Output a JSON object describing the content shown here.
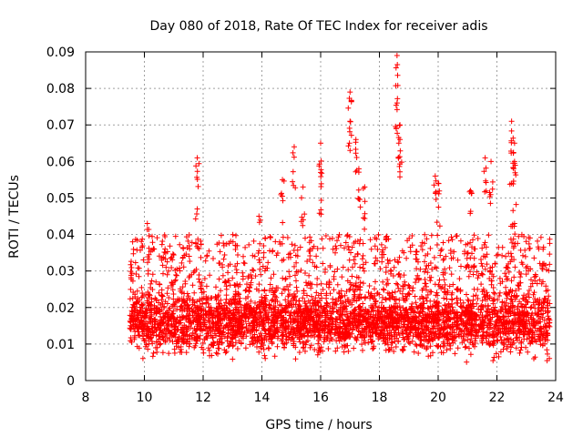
{
  "chart_data": {
    "type": "scatter",
    "title": "Day 080 of 2018, Rate Of TEC Index for receiver adis",
    "xlabel": "GPS time / hours",
    "ylabel": "ROTI / TECUs",
    "xlim": [
      8,
      24
    ],
    "ylim": [
      0,
      0.09
    ],
    "x_ticks": [
      8,
      10,
      12,
      14,
      16,
      18,
      20,
      22,
      24
    ],
    "x_tick_labels": [
      "8",
      "10",
      "12",
      "14",
      "16",
      "18",
      "20",
      "22",
      "24"
    ],
    "y_ticks": [
      0,
      0.01,
      0.02,
      0.03,
      0.04,
      0.05,
      0.06,
      0.07,
      0.08,
      0.09
    ],
    "y_tick_labels": [
      "0",
      "0.01",
      "0.02",
      "0.03",
      "0.04",
      "0.05",
      "0.06",
      "0.07",
      "0.08",
      "0.09"
    ],
    "grid": true,
    "marker": "+",
    "series_color": "#ff0000",
    "time_range": [
      9.5,
      23.8
    ],
    "bulk_band": [
      0.005,
      0.03
    ],
    "peaks": [
      {
        "x": 9.6,
        "y": 0.038
      },
      {
        "x": 10.1,
        "y": 0.043
      },
      {
        "x": 11.8,
        "y": 0.061
      },
      {
        "x": 11.8,
        "y": 0.047
      },
      {
        "x": 13.9,
        "y": 0.045
      },
      {
        "x": 14.7,
        "y": 0.055
      },
      {
        "x": 15.1,
        "y": 0.064
      },
      {
        "x": 15.4,
        "y": 0.053
      },
      {
        "x": 16.0,
        "y": 0.065
      },
      {
        "x": 16.0,
        "y": 0.057
      },
      {
        "x": 17.0,
        "y": 0.079
      },
      {
        "x": 17.0,
        "y": 0.071
      },
      {
        "x": 17.2,
        "y": 0.066
      },
      {
        "x": 17.3,
        "y": 0.058
      },
      {
        "x": 17.5,
        "y": 0.053
      },
      {
        "x": 18.6,
        "y": 0.089
      },
      {
        "x": 18.6,
        "y": 0.076
      },
      {
        "x": 18.7,
        "y": 0.07
      },
      {
        "x": 18.7,
        "y": 0.066
      },
      {
        "x": 19.9,
        "y": 0.056
      },
      {
        "x": 20.0,
        "y": 0.054
      },
      {
        "x": 21.1,
        "y": 0.052
      },
      {
        "x": 21.6,
        "y": 0.061
      },
      {
        "x": 21.8,
        "y": 0.06
      },
      {
        "x": 22.5,
        "y": 0.071
      },
      {
        "x": 22.6,
        "y": 0.065
      },
      {
        "x": 22.6,
        "y": 0.06
      },
      {
        "x": 22.5,
        "y": 0.054
      },
      {
        "x": 22.6,
        "y": 0.043
      },
      {
        "x": 23.6,
        "y": 0.032
      }
    ]
  }
}
